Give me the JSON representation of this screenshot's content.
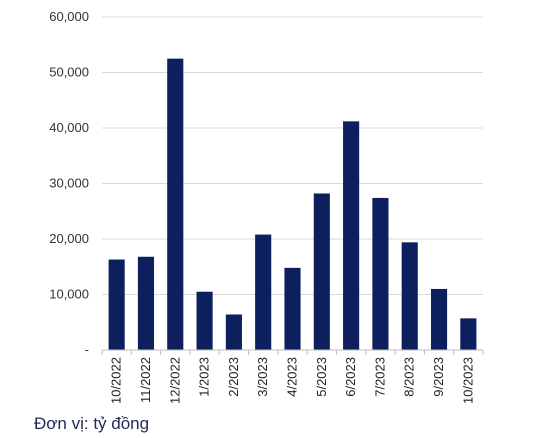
{
  "chart_data": {
    "type": "bar",
    "categories": [
      "10/2022",
      "11/2022",
      "12/2022",
      "1/2023",
      "2/2023",
      "3/2023",
      "4/2023",
      "5/2023",
      "6/2023",
      "7/2023",
      "8/2023",
      "9/2023",
      "10/2023"
    ],
    "values": [
      16300,
      16800,
      52500,
      10500,
      6400,
      20800,
      14800,
      28200,
      41200,
      27400,
      19400,
      11000,
      5700
    ],
    "ylim": [
      0,
      60000
    ],
    "yticks": [
      0,
      10000,
      20000,
      30000,
      40000,
      50000,
      60000
    ],
    "ytick_labels": [
      "-",
      "10,000",
      "20,000",
      "30,000",
      "40,000",
      "50,000",
      "60,000"
    ],
    "grid": true,
    "bar_color": "#0d1f5c",
    "grid_color": "#d9d9d9"
  },
  "unit_note": "Đơn vị: tỷ đồng"
}
